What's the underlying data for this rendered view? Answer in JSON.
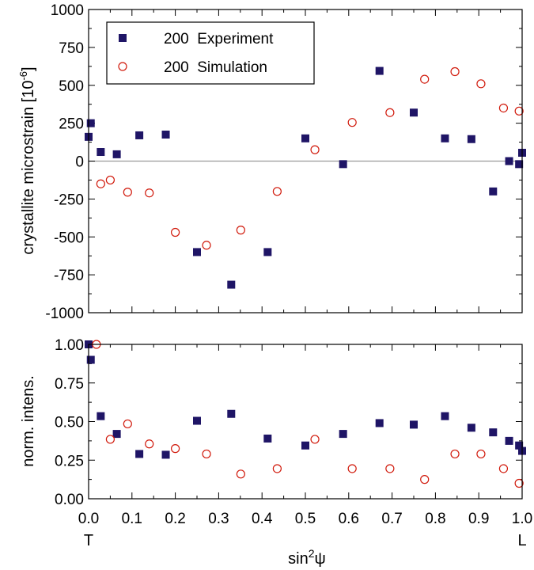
{
  "chart_data": [
    {
      "type": "scatter",
      "panel": "top",
      "ylabel": "crystallite microstrain [10",
      "ylabel_exponent": "-6",
      "ylabel_close": "]",
      "xlim": [
        0.0,
        1.0
      ],
      "ylim": [
        -1000,
        1000
      ],
      "yticks": [
        "1000",
        "750",
        "500",
        "250",
        "0",
        "-250",
        "-500",
        "-750",
        "-1000"
      ],
      "ytick_values": [
        1000,
        750,
        500,
        250,
        0,
        -250,
        -500,
        -750,
        -1000
      ],
      "zero_line": true,
      "legend_placement": "top-left",
      "series": [
        {
          "name": "200  Experiment",
          "marker": "filled-square",
          "color": "#1f1566",
          "x": [
            0.0,
            0.005,
            0.028,
            0.065,
            0.117,
            0.178,
            0.25,
            0.329,
            0.413,
            0.5,
            0.587,
            0.671,
            0.75,
            0.822,
            0.883,
            0.933,
            0.97,
            0.993,
            1.0
          ],
          "y": [
            160,
            250,
            60,
            45,
            170,
            175,
            -600,
            -815,
            -600,
            150,
            -20,
            595,
            320,
            150,
            145,
            -200,
            0,
            -20,
            55
          ]
        },
        {
          "name": "200  Simulation",
          "marker": "open-circle",
          "color": "#d11a0c",
          "x": [
            0.028,
            0.05,
            0.09,
            0.14,
            0.2,
            0.272,
            0.351,
            0.435,
            0.522,
            0.608,
            0.695,
            0.775,
            0.845,
            0.905,
            0.957,
            0.993
          ],
          "y": [
            -150,
            -125,
            -205,
            -210,
            -470,
            -555,
            -455,
            -200,
            75,
            255,
            320,
            540,
            590,
            510,
            350,
            330
          ]
        }
      ]
    },
    {
      "type": "scatter",
      "panel": "bottom",
      "ylabel": "norm. intens.",
      "xlabel": "sin",
      "xlabel_exponent": "2",
      "xlabel_symbol": "ψ",
      "xlim": [
        0.0,
        1.0
      ],
      "ylim": [
        0.0,
        1.0
      ],
      "yticks": [
        "1.00",
        "0.75",
        "0.50",
        "0.25",
        "0.00"
      ],
      "ytick_values": [
        1.0,
        0.75,
        0.5,
        0.25,
        0.0
      ],
      "xticks": [
        "0.0",
        "0.1",
        "0.2",
        "0.3",
        "0.4",
        "0.5",
        "0.6",
        "0.7",
        "0.8",
        "0.9",
        "1.0"
      ],
      "xtick_values": [
        0.0,
        0.1,
        0.2,
        0.3,
        0.4,
        0.5,
        0.6,
        0.7,
        0.8,
        0.9,
        1.0
      ],
      "x_end_labels": {
        "left": "T",
        "right": "L"
      },
      "series": [
        {
          "name": "200  Experiment",
          "marker": "filled-square",
          "color": "#1f1566",
          "x": [
            0.0,
            0.005,
            0.028,
            0.065,
            0.117,
            0.178,
            0.25,
            0.329,
            0.413,
            0.5,
            0.587,
            0.671,
            0.75,
            0.822,
            0.883,
            0.933,
            0.97,
            0.993,
            1.0
          ],
          "y": [
            1.0,
            0.9,
            0.535,
            0.42,
            0.29,
            0.285,
            0.505,
            0.55,
            0.39,
            0.345,
            0.42,
            0.49,
            0.48,
            0.535,
            0.46,
            0.43,
            0.375,
            0.345,
            0.31
          ]
        },
        {
          "name": "200  Simulation",
          "marker": "open-circle",
          "color": "#d11a0c",
          "x": [
            0.018,
            0.05,
            0.09,
            0.14,
            0.2,
            0.272,
            0.351,
            0.435,
            0.522,
            0.608,
            0.695,
            0.775,
            0.845,
            0.905,
            0.957,
            0.993
          ],
          "y": [
            1.0,
            0.385,
            0.485,
            0.355,
            0.325,
            0.29,
            0.16,
            0.195,
            0.385,
            0.195,
            0.195,
            0.125,
            0.29,
            0.29,
            0.195,
            0.1
          ]
        }
      ]
    }
  ]
}
